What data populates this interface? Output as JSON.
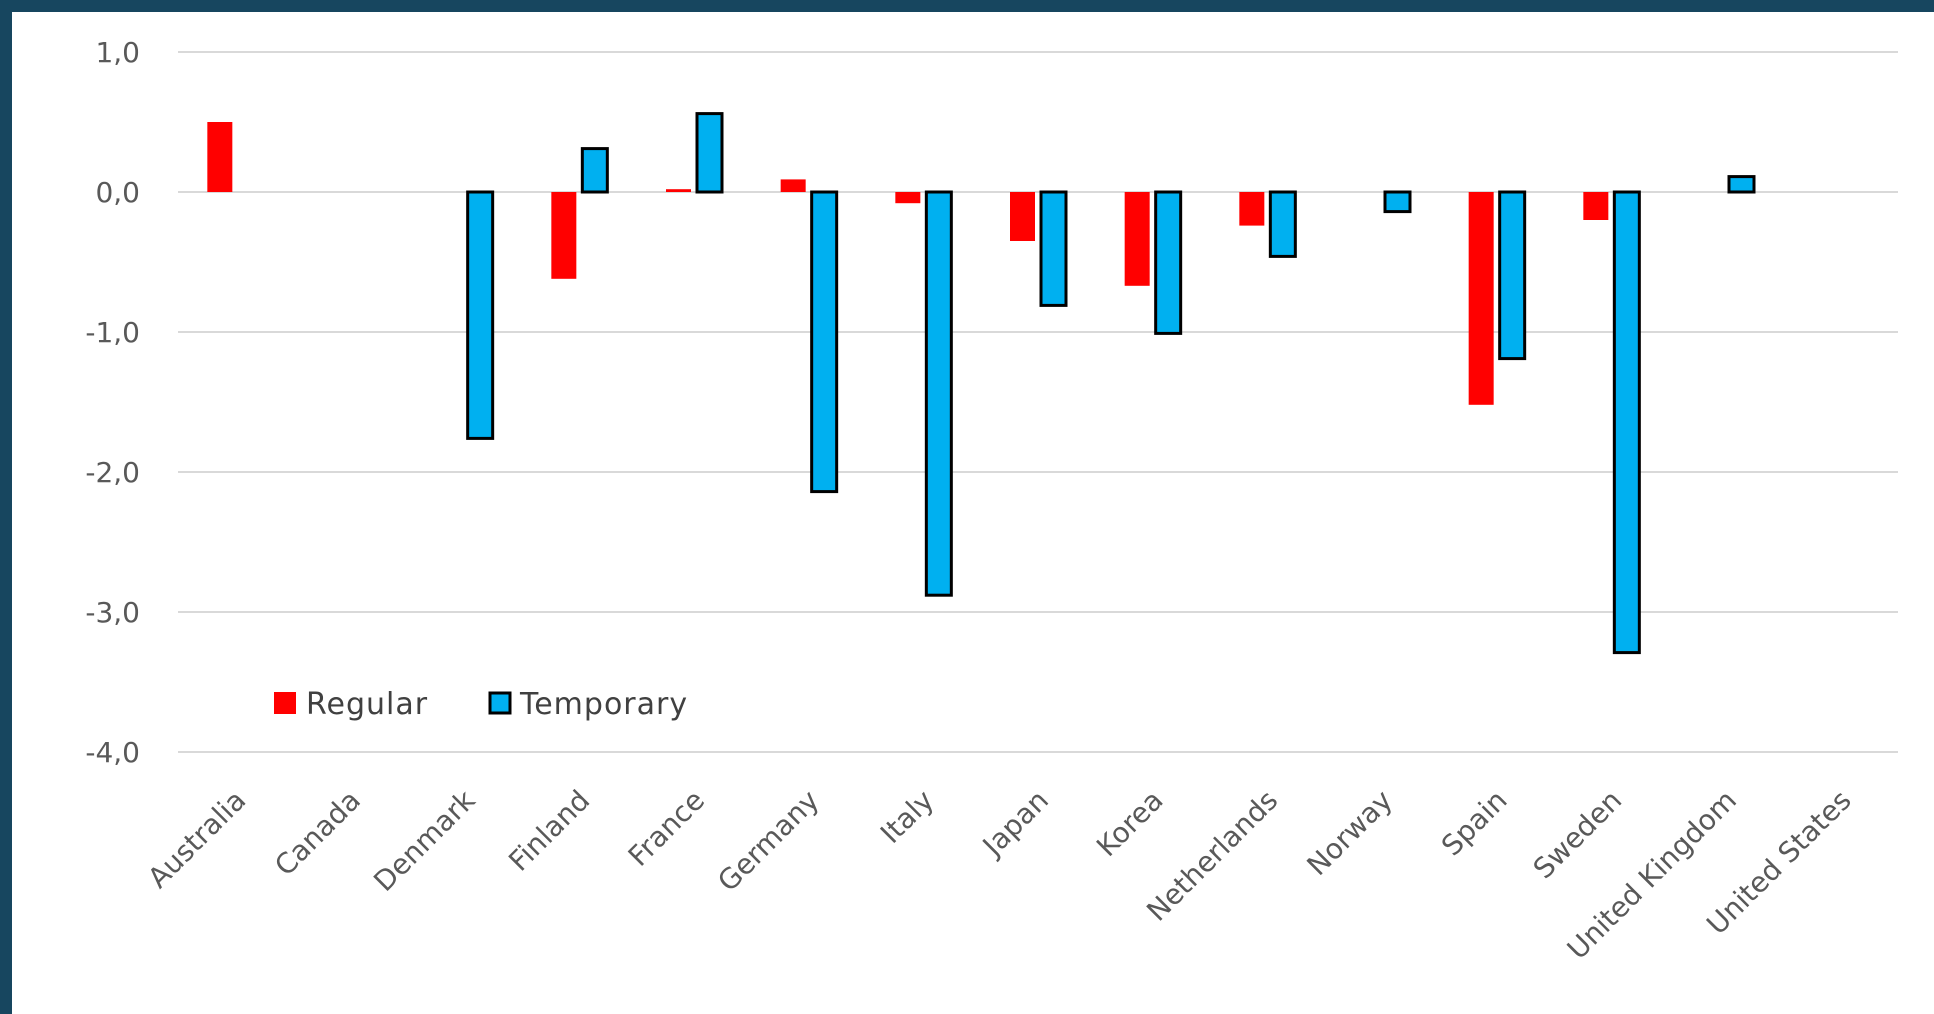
{
  "chart_data": {
    "type": "bar",
    "title": "",
    "xlabel": "",
    "ylabel": "",
    "categories": [
      "Australia",
      "Canada",
      "Denmark",
      "Finland",
      "France",
      "Germany",
      "Italy",
      "Japan",
      "Korea",
      "Netherlands",
      "Norway",
      "Spain",
      "Sweden",
      "United Kingdom",
      "United States"
    ],
    "series": [
      {
        "name": "Regular",
        "color": "#ff0000",
        "values": [
          0.5,
          null,
          null,
          -0.62,
          0.02,
          0.09,
          -0.08,
          -0.35,
          -0.67,
          -0.24,
          null,
          -1.52,
          -0.2,
          null,
          null
        ]
      },
      {
        "name": "Temporary",
        "color": "#00b0f0",
        "values": [
          null,
          null,
          -1.76,
          0.31,
          0.56,
          -2.14,
          -2.88,
          -0.81,
          -1.01,
          -0.46,
          -0.14,
          -1.19,
          -3.29,
          0.11,
          null
        ]
      }
    ],
    "ylim": [
      -4.0,
      1.0
    ],
    "yticks": [
      "1,0",
      "0,0",
      "-1,0",
      "-2,0",
      "-3,0",
      "-4,0"
    ],
    "ytick_values": [
      1.0,
      0.0,
      -1.0,
      -2.0,
      -3.0,
      -4.0
    ],
    "grid": true,
    "legend_position": "lower-left"
  }
}
